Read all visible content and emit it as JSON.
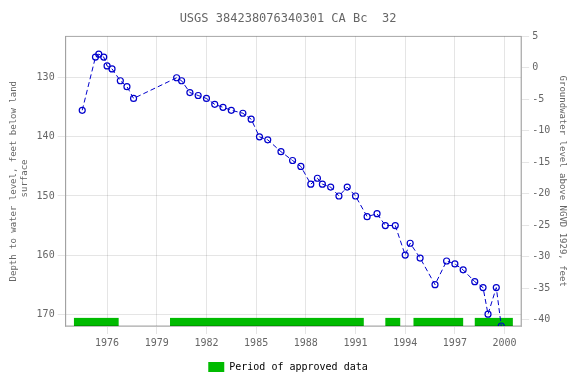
{
  "chart_data": {
    "type": "line",
    "title": "USGS 384238076340301 CA Bc  32",
    "ylabel": "Depth to water level, feet below land\n surface",
    "y2label": "Groundwater level above NGVD 1929, feet",
    "x": [
      1974.5,
      1975.3,
      1975.5,
      1975.8,
      1976.0,
      1976.3,
      1976.8,
      1977.2,
      1977.6,
      1980.2,
      1980.5,
      1981.0,
      1981.5,
      1982.0,
      1982.5,
      1983.0,
      1983.5,
      1984.2,
      1984.7,
      1985.2,
      1985.7,
      1986.5,
      1987.2,
      1987.7,
      1988.3,
      1988.7,
      1989.0,
      1989.5,
      1990.0,
      1990.5,
      1991.0,
      1991.7,
      1992.3,
      1992.8,
      1993.4,
      1994.0,
      1994.3,
      1994.9,
      1995.8,
      1996.5,
      1997.0,
      1997.5,
      1998.2,
      1998.7,
      1999.0,
      1999.5,
      1999.8
    ],
    "series": [
      {
        "values": [
          135.5,
          126.5,
          126.0,
          126.5,
          128.0,
          128.5,
          130.5,
          131.5,
          133.5,
          130.0,
          130.5,
          132.5,
          133.0,
          133.5,
          134.5,
          135.0,
          135.5,
          136.0,
          137.0,
          140.0,
          140.5,
          142.5,
          144.0,
          145.0,
          148.0,
          147.0,
          148.0,
          148.5,
          150.0,
          148.5,
          150.0,
          153.5,
          153.0,
          155.0,
          155.0,
          160.0,
          158.0,
          160.5,
          165.0,
          161.0,
          161.5,
          162.5,
          164.5,
          165.5,
          170.0,
          165.5,
          172.0
        ],
        "color": "#0000cc",
        "line_style": "dashed",
        "marker": "circle"
      },
      {
        "name": "Period of approved data",
        "type": "span",
        "color": "#00bb00",
        "periods": [
          [
            1974.0,
            1976.7
          ],
          [
            1979.8,
            1991.5
          ],
          [
            1992.8,
            1993.7
          ],
          [
            1994.5,
            1997.5
          ],
          [
            1998.2,
            2000.5
          ]
        ]
      }
    ],
    "xlim": [
      1973.5,
      2001.0
    ],
    "xticks": [
      1976,
      1979,
      1982,
      1985,
      1988,
      1991,
      1994,
      1997,
      2000
    ],
    "ylim": [
      172,
      123
    ],
    "yticks": [
      130,
      140,
      150,
      160,
      170
    ],
    "y2lim": [
      -41,
      5
    ],
    "y2ticks": [
      5,
      0,
      -5,
      -10,
      -15,
      -20,
      -25,
      -30,
      -35,
      -40
    ],
    "grid": true
  }
}
